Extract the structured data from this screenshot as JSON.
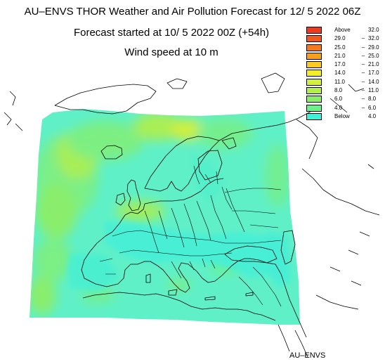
{
  "header": {
    "title": "AU–ENVS THOR Weather and Air Pollution Forecast for 12/ 5 2022  06Z",
    "forecast_started": "Forecast started at 10/ 5 2022  00Z (+54h)",
    "variable": "Wind speed at 10 m"
  },
  "legend": {
    "items": [
      {
        "pre": "Above",
        "sep": "",
        "val": "32.0",
        "color": "#ee3b1e"
      },
      {
        "pre": "29.0",
        "sep": "–",
        "val": "32.0",
        "color": "#f05a1e"
      },
      {
        "pre": "25.0",
        "sep": "–",
        "val": "29.0",
        "color": "#f37a1f"
      },
      {
        "pre": "21.0",
        "sep": "–",
        "val": "25.0",
        "color": "#f6a020"
      },
      {
        "pre": "17.0",
        "sep": "–",
        "val": "21.0",
        "color": "#f9cb24"
      },
      {
        "pre": "14.0",
        "sep": "–",
        "val": "17.0",
        "color": "#f2ef2a"
      },
      {
        "pre": "11.0",
        "sep": "–",
        "val": "14.0",
        "color": "#d3ef3a"
      },
      {
        "pre": "8.0",
        "sep": "–",
        "val": "11.0",
        "color": "#b2ee4c"
      },
      {
        "pre": "6.0",
        "sep": "–",
        "val": "8.0",
        "color": "#8aee68"
      },
      {
        "pre": "4.0",
        "sep": "–",
        "val": "6.0",
        "color": "#6ef08e"
      },
      {
        "pre": "Below",
        "sep": "",
        "val": "4.0",
        "color": "#42efd7"
      }
    ]
  },
  "map": {
    "field_base_color": "#5ff0c8",
    "ocean_high_color": "#a6ee58",
    "ocean_mid_color": "#79ef86",
    "calm_color": "#46efd6"
  },
  "footer": {
    "credit": "AU–ENVS"
  }
}
